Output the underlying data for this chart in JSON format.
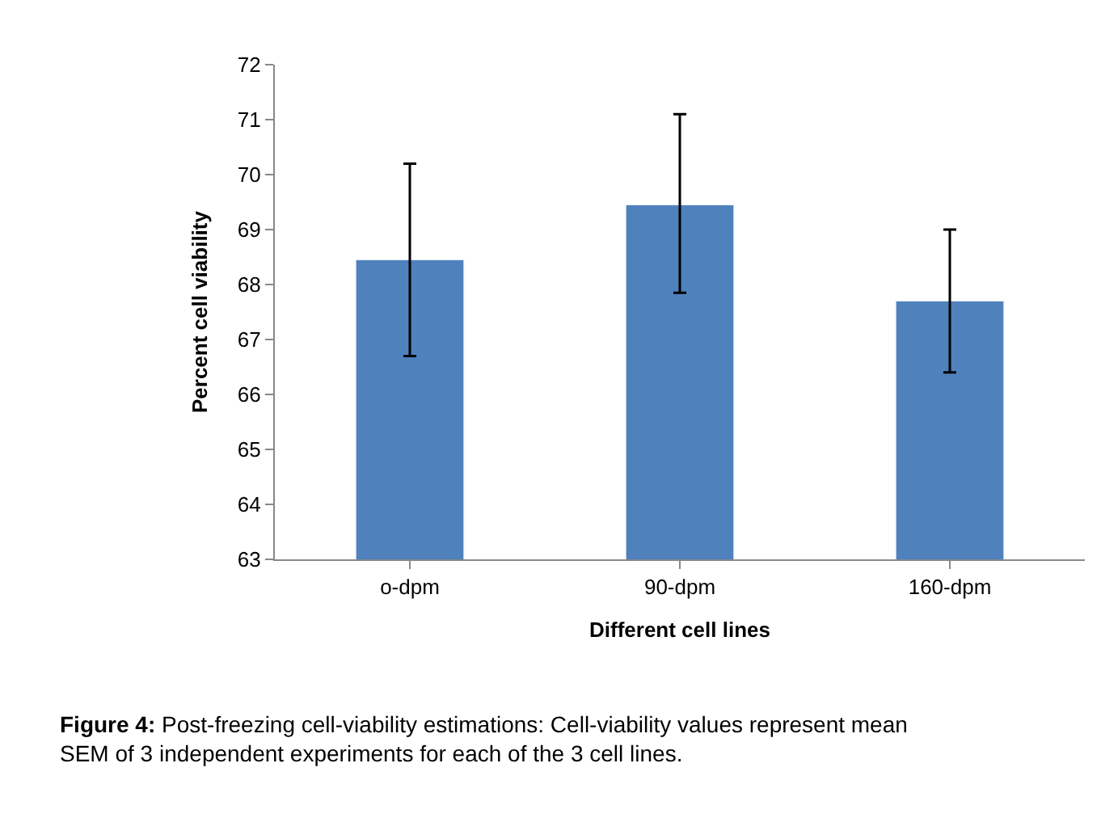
{
  "chart_data": {
    "type": "bar",
    "xlabel": "Different cell lines",
    "ylabel": "Percent cell viability",
    "categories": [
      "o-dpm",
      "90-dpm",
      "160-dpm"
    ],
    "values": [
      68.45,
      69.45,
      67.7
    ],
    "errors": [
      [
        66.7,
        70.2
      ],
      [
        67.85,
        71.1
      ],
      [
        66.4,
        69.0
      ]
    ],
    "color": "#4f81bd",
    "ylim": [
      63,
      72
    ],
    "yticks": [
      63,
      64,
      65,
      66,
      67,
      68,
      69,
      70,
      71,
      72
    ],
    "annotations": [
      "Figure 4: Post-freezing cell-viability estimations: Cell-viability values represent mean SEM of 3 independent experiments for each of the 3 cell lines."
    ]
  }
}
